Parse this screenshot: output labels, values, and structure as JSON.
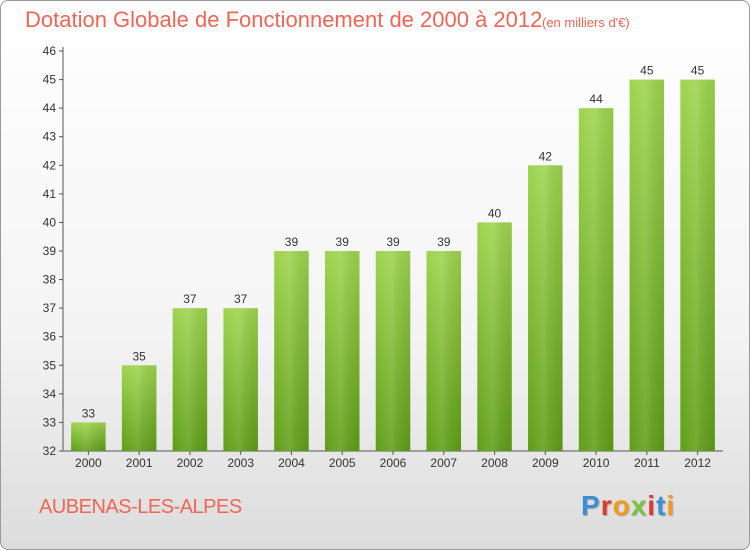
{
  "header": {
    "title": "Dotation Globale de Fonctionnement de 2000 à 2012",
    "subtitle": "(en milliers d'€)"
  },
  "footer": {
    "commune": "AUBENAS-LES-ALPES",
    "logo_letters": [
      "P",
      "r",
      "o",
      "x",
      "i",
      "t",
      "i"
    ],
    "logo_colors": [
      "#3a8fd6",
      "#e03a2a",
      "#f39a1a",
      "#7cc242",
      "#e03a2a",
      "#3a8fd6",
      "#f39a1a"
    ]
  },
  "colors": {
    "bar_top": "#9ed44e",
    "bar_bottom": "#5f9e17",
    "text": "#333333",
    "accent": "#ee6655"
  },
  "chart_data": {
    "type": "bar",
    "categories": [
      "2000",
      "2001",
      "2002",
      "2003",
      "2004",
      "2005",
      "2006",
      "2007",
      "2008",
      "2009",
      "2010",
      "2011",
      "2012"
    ],
    "values": [
      33,
      35,
      37,
      37,
      39,
      39,
      39,
      39,
      40,
      42,
      44,
      45,
      45
    ],
    "title": "Dotation Globale de Fonctionnement de 2000 à 2012",
    "subtitle": "(en milliers d'€)",
    "ylim": [
      32,
      46
    ],
    "yticks": [
      32,
      33,
      34,
      35,
      36,
      37,
      38,
      39,
      40,
      41,
      42,
      43,
      44,
      45,
      46
    ],
    "grid": false,
    "data_labels": true
  }
}
